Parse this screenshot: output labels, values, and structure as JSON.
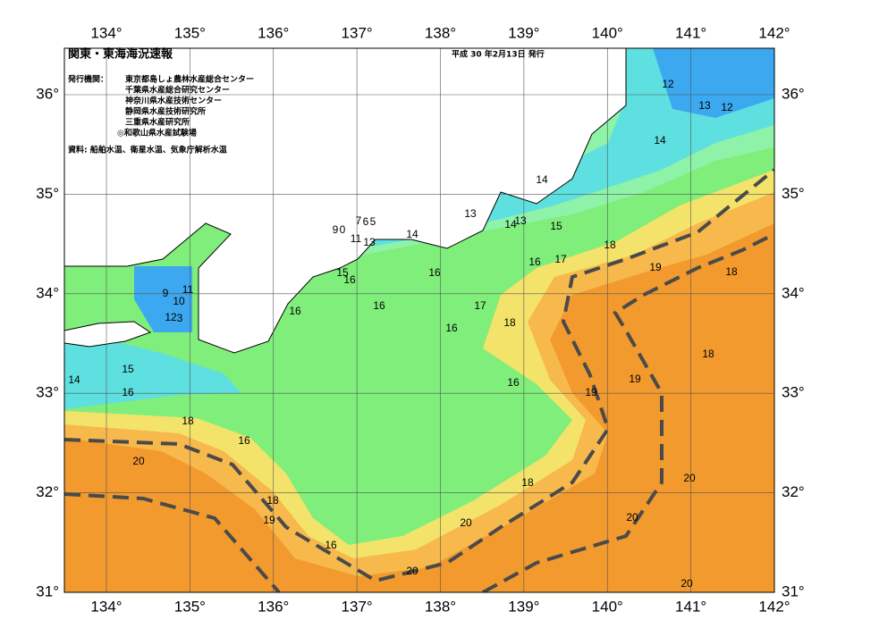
{
  "header": {
    "title": "関東・東海海況速報",
    "date": "平成 30 年2月13日 発行",
    "issuer_label": "発行機関：",
    "issuers": [
      "東京都島しょ農林水産総合センター",
      "千葉県水産総合研究センター",
      "神奈川県水産技術センター",
      "静岡県水産技術研究所",
      "三重県水産研究所",
      "◎和歌山県水産試験場"
    ],
    "source": "資料: 船舶水温、衛星水温、気象庁解析水温"
  },
  "map": {
    "lon_ticks": [
      {
        "value": 134,
        "label": "134°"
      },
      {
        "value": 135,
        "label": "135°"
      },
      {
        "value": 136,
        "label": "136°"
      },
      {
        "value": 137,
        "label": "137°"
      },
      {
        "value": 138,
        "label": "138°"
      },
      {
        "value": 139,
        "label": "139°"
      },
      {
        "value": 140,
        "label": "140°"
      },
      {
        "value": 141,
        "label": "141°"
      },
      {
        "value": 142,
        "label": "142°"
      }
    ],
    "lat_ticks": [
      {
        "value": 31,
        "label": "31°"
      },
      {
        "value": 32,
        "label": "32°"
      },
      {
        "value": 33,
        "label": "33°"
      },
      {
        "value": 34,
        "label": "34°"
      },
      {
        "value": 35,
        "label": "35°"
      },
      {
        "value": 36,
        "label": "36°"
      }
    ],
    "contour_labels": [
      12,
      13,
      12,
      14,
      14,
      13,
      14,
      13,
      15,
      9,
      0,
      7,
      6,
      5,
      11,
      13,
      14,
      18,
      19,
      18,
      16,
      17,
      15,
      16,
      16,
      9,
      11,
      10,
      16,
      16,
      17,
      18,
      16,
      12,
      3,
      18,
      15,
      14,
      16,
      16,
      19,
      19,
      18,
      16,
      20,
      18,
      19,
      18,
      20,
      20,
      20,
      16,
      20,
      20
    ]
  }
}
